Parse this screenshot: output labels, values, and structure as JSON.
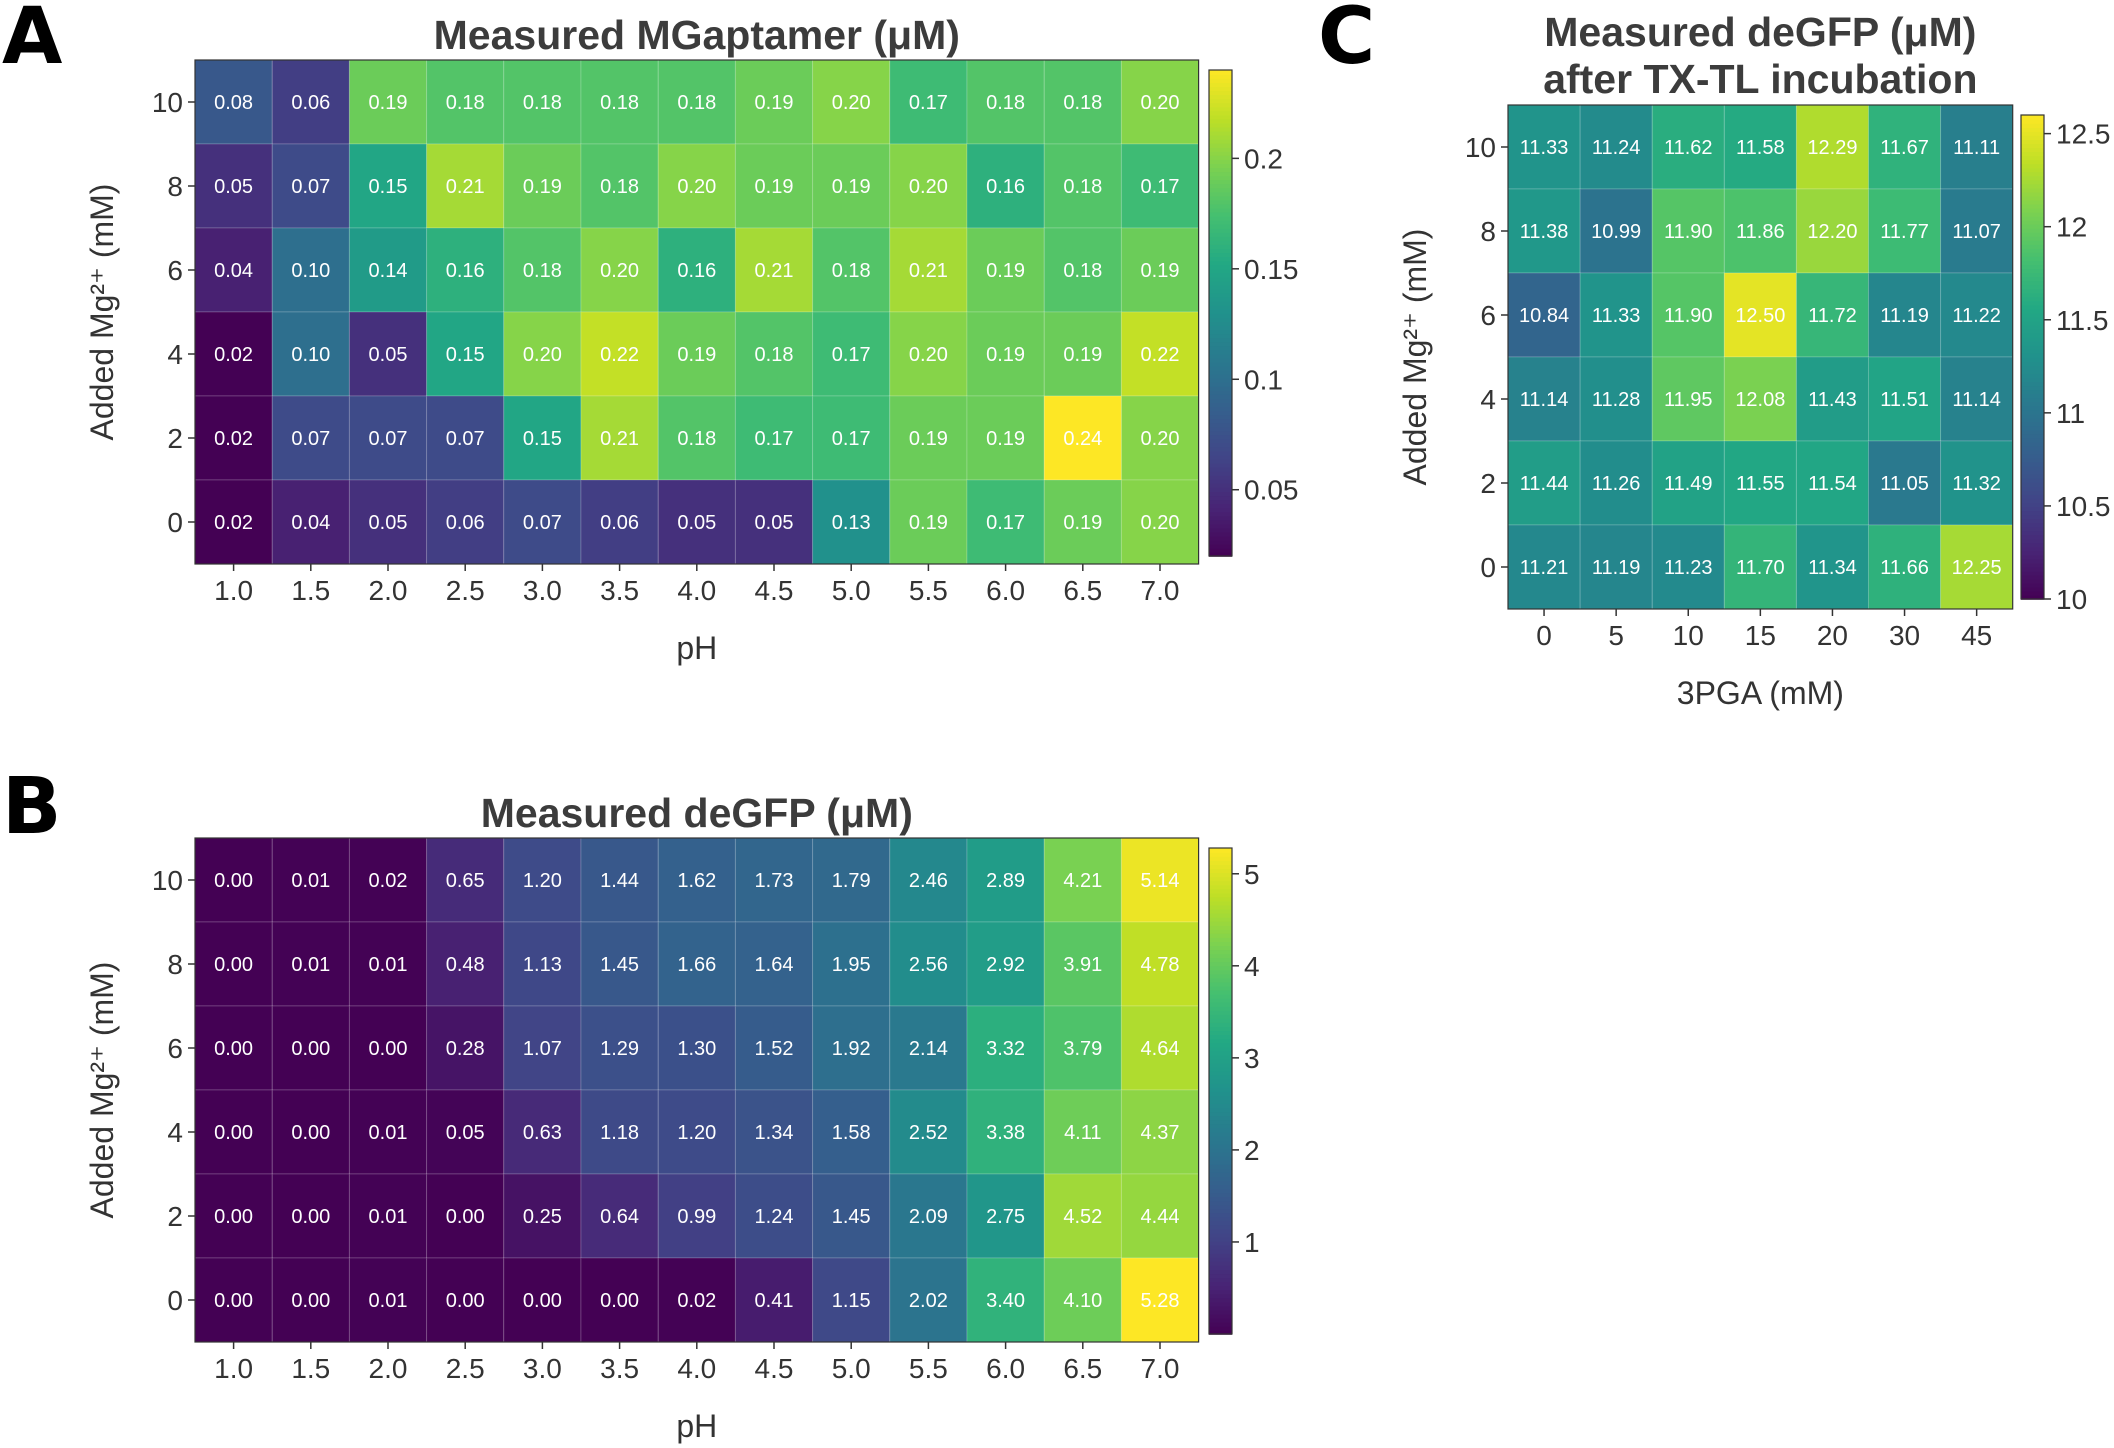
{
  "chart_data": [
    {
      "panel": "A",
      "type": "heatmap",
      "title": "Measured MGaptamer (μM)",
      "xlabel": "pH",
      "ylabel": "Added Mg²⁺ (mM)",
      "x_categories": [
        "1.0",
        "1.5",
        "2.0",
        "2.5",
        "3.0",
        "3.5",
        "4.0",
        "4.5",
        "5.0",
        "5.5",
        "6.0",
        "6.5",
        "7.0"
      ],
      "y_categories": [
        "10",
        "8",
        "6",
        "4",
        "2",
        "0"
      ],
      "values": [
        [
          0.08,
          0.06,
          0.19,
          0.18,
          0.18,
          0.18,
          0.18,
          0.19,
          0.2,
          0.17,
          0.18,
          0.18,
          0.2
        ],
        [
          0.05,
          0.07,
          0.15,
          0.21,
          0.19,
          0.18,
          0.2,
          0.19,
          0.19,
          0.2,
          0.16,
          0.18,
          0.17
        ],
        [
          0.04,
          0.1,
          0.14,
          0.16,
          0.18,
          0.2,
          0.16,
          0.21,
          0.18,
          0.21,
          0.19,
          0.18,
          0.19
        ],
        [
          0.02,
          0.1,
          0.05,
          0.15,
          0.2,
          0.22,
          0.19,
          0.18,
          0.17,
          0.2,
          0.19,
          0.19,
          0.22
        ],
        [
          0.02,
          0.07,
          0.07,
          0.07,
          0.15,
          0.21,
          0.18,
          0.17,
          0.17,
          0.19,
          0.19,
          0.24,
          0.2
        ],
        [
          0.02,
          0.04,
          0.05,
          0.06,
          0.07,
          0.06,
          0.05,
          0.05,
          0.13,
          0.19,
          0.17,
          0.19,
          0.2
        ]
      ],
      "colorbar": {
        "min": 0.02,
        "max": 0.24,
        "ticks": [
          0.05,
          0.1,
          0.15,
          0.2
        ],
        "tick_labels": [
          "0.05",
          "0.1",
          "0.15",
          "0.2"
        ]
      },
      "colormap": "viridis"
    },
    {
      "panel": "B",
      "type": "heatmap",
      "title": "Measured deGFP (μM)",
      "xlabel": "pH",
      "ylabel": "Added Mg²⁺ (mM)",
      "x_categories": [
        "1.0",
        "1.5",
        "2.0",
        "2.5",
        "3.0",
        "3.5",
        "4.0",
        "4.5",
        "5.0",
        "5.5",
        "6.0",
        "6.5",
        "7.0"
      ],
      "y_categories": [
        "10",
        "8",
        "6",
        "4",
        "2",
        "0"
      ],
      "values": [
        [
          0.0,
          0.01,
          0.02,
          0.65,
          1.2,
          1.44,
          1.62,
          1.73,
          1.79,
          2.46,
          2.89,
          4.21,
          5.14
        ],
        [
          0.0,
          0.01,
          0.01,
          0.48,
          1.13,
          1.45,
          1.66,
          1.64,
          1.95,
          2.56,
          2.92,
          3.91,
          4.78
        ],
        [
          0.0,
          0.0,
          0.0,
          0.28,
          1.07,
          1.29,
          1.3,
          1.52,
          1.92,
          2.14,
          3.32,
          3.79,
          4.64
        ],
        [
          0.0,
          0.0,
          0.01,
          0.05,
          0.63,
          1.18,
          1.2,
          1.34,
          1.58,
          2.52,
          3.38,
          4.11,
          4.37
        ],
        [
          0.0,
          0.0,
          0.01,
          0.0,
          0.25,
          0.64,
          0.99,
          1.24,
          1.45,
          2.09,
          2.75,
          4.52,
          4.44
        ],
        [
          0.0,
          0.0,
          0.01,
          0.0,
          0.0,
          0.0,
          0.02,
          0.41,
          1.15,
          2.02,
          3.4,
          4.1,
          5.28
        ]
      ],
      "colorbar": {
        "min": 0.0,
        "max": 5.28,
        "ticks": [
          1,
          2,
          3,
          4,
          5
        ],
        "tick_labels": [
          "1",
          "2",
          "3",
          "4",
          "5"
        ]
      },
      "colormap": "viridis"
    },
    {
      "panel": "C",
      "type": "heatmap",
      "title": "Measured deGFP (μM)",
      "title_line2": "after TX-TL incubation",
      "xlabel": "3PGA (mM)",
      "ylabel": "Added Mg²⁺ (mM)",
      "x_categories": [
        "0",
        "5",
        "10",
        "15",
        "20",
        "30",
        "45"
      ],
      "y_categories": [
        "10",
        "8",
        "6",
        "4",
        "2",
        "0"
      ],
      "values": [
        [
          11.33,
          11.24,
          11.62,
          11.58,
          12.29,
          11.67,
          11.11
        ],
        [
          11.38,
          10.99,
          11.9,
          11.86,
          12.2,
          11.77,
          11.07
        ],
        [
          10.84,
          11.33,
          11.9,
          12.5,
          11.72,
          11.19,
          11.22
        ],
        [
          11.14,
          11.28,
          11.95,
          12.08,
          11.43,
          11.51,
          11.14
        ],
        [
          11.44,
          11.26,
          11.49,
          11.55,
          11.54,
          11.05,
          11.32
        ],
        [
          11.21,
          11.19,
          11.23,
          11.7,
          11.34,
          11.66,
          12.25
        ]
      ],
      "colorbar": {
        "min": 10.0,
        "max": 12.6,
        "ticks": [
          10,
          10.5,
          11,
          11.5,
          12,
          12.5
        ],
        "tick_labels": [
          "10",
          "10.5",
          "11",
          "11.5",
          "12",
          "12.5"
        ]
      },
      "colormap": "viridis"
    }
  ],
  "panel_labels": [
    "A",
    "B",
    "C"
  ]
}
